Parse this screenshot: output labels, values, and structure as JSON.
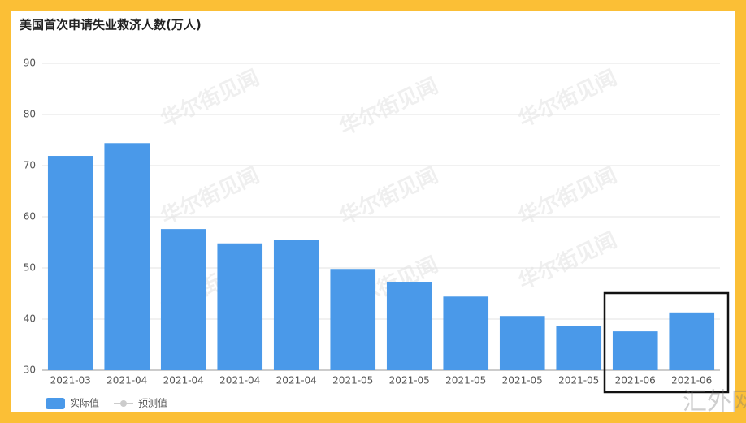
{
  "chart_data": {
    "type": "bar",
    "title": "美国首次申请失业救济人数(万人)",
    "categories": [
      "2021-03",
      "2021-04",
      "2021-04",
      "2021-04",
      "2021-04",
      "2021-05",
      "2021-05",
      "2021-05",
      "2021-05",
      "2021-05",
      "2021-06",
      "2021-06"
    ],
    "series": [
      {
        "name": "实际值",
        "color": "#4a99e9",
        "values": [
          71.9,
          74.4,
          57.6,
          54.8,
          55.4,
          49.8,
          47.3,
          44.4,
          40.6,
          38.6,
          37.6,
          41.3
        ]
      },
      {
        "name": "预测值",
        "color": "#cccccc",
        "values": [
          null,
          null,
          null,
          null,
          null,
          null,
          null,
          null,
          null,
          null,
          null,
          null
        ]
      }
    ],
    "ylim": [
      30,
      90
    ],
    "yticks": [
      30,
      40,
      50,
      60,
      70,
      80,
      90
    ],
    "grid": true,
    "watermark": "华尔街见闻",
    "corner_mark": "汇外网"
  }
}
